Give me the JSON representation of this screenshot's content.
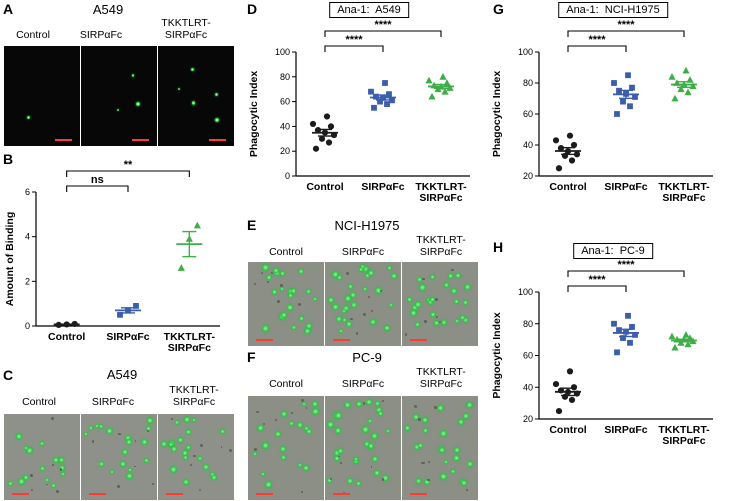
{
  "panels": {
    "A": {
      "label": "A",
      "title": "A549",
      "columns": [
        "Control",
        "SIRPαFc",
        "TKKTLRT-\nSIRPαFc"
      ]
    },
    "B": {
      "label": "B"
    },
    "C": {
      "label": "C",
      "title": "A549",
      "columns": [
        "Control",
        "SIRPαFc",
        "TKKTLRT-\nSIRPαFc"
      ]
    },
    "D": {
      "label": "D"
    },
    "E": {
      "label": "E",
      "title": "NCI-H1975",
      "columns": [
        "Control",
        "SIRPαFc",
        "TKKTLRT-\nSIRPαFc"
      ]
    },
    "F": {
      "label": "F",
      "title": "PC-9",
      "columns": [
        "Control",
        "SIRPαFc",
        "TKKTLRT-\nSIRPαFc"
      ]
    },
    "G": {
      "label": "G"
    },
    "H": {
      "label": "H"
    }
  },
  "chart_data": [
    {
      "id": "B",
      "type": "scatter",
      "title": "",
      "xlabel": "",
      "ylabel": "Amount of Binding",
      "ylim": [
        0,
        6
      ],
      "yticks": [
        0,
        2,
        4,
        6
      ],
      "grid": false,
      "categories": [
        "Control",
        "SIRPαFc",
        "TKKTLRT-\nSIRPαFc"
      ],
      "series": [
        {
          "name": "Control",
          "marker": "circle",
          "color": "#1c1c1c",
          "values": [
            0.05,
            0.07,
            0.09
          ]
        },
        {
          "name": "SIRPαFc",
          "marker": "square",
          "color": "#3a5dae",
          "values": [
            0.5,
            0.7,
            0.9
          ]
        },
        {
          "name": "TKKTLRT-SIRPαFc",
          "marker": "triangle",
          "color": "#3fae49",
          "values": [
            2.6,
            3.9,
            4.5
          ]
        }
      ],
      "significance": [
        {
          "from": 0,
          "to": 1,
          "label": "ns",
          "row": 0
        },
        {
          "from": 0,
          "to": 2,
          "label": "**",
          "row": 1
        }
      ]
    },
    {
      "id": "D",
      "type": "scatter",
      "title": "Ana-1:  A549",
      "xlabel": "",
      "ylabel": "Phagocytic Index",
      "ylim": [
        0,
        100
      ],
      "yticks": [
        0,
        20,
        40,
        60,
        80,
        100
      ],
      "grid": false,
      "categories": [
        "Control",
        "SIRPαFc",
        "TKKTLRT-\nSIRPαFc"
      ],
      "series": [
        {
          "name": "Control",
          "marker": "circle",
          "color": "#1c1c1c",
          "values": [
            22,
            27,
            30,
            33,
            35,
            37,
            40,
            42,
            48
          ]
        },
        {
          "name": "SIRPαFc",
          "marker": "square",
          "color": "#3a5dae",
          "values": [
            55,
            58,
            60,
            61,
            63,
            64,
            66,
            68,
            75
          ]
        },
        {
          "name": "TKKTLRT-SIRPαFc",
          "marker": "triangle",
          "color": "#3fae49",
          "values": [
            64,
            68,
            70,
            71,
            72,
            73,
            75,
            77,
            80
          ]
        }
      ],
      "significance": [
        {
          "from": 0,
          "to": 1,
          "label": "****",
          "row": 0
        },
        {
          "from": 0,
          "to": 2,
          "label": "****",
          "row": 1
        }
      ]
    },
    {
      "id": "G",
      "type": "scatter",
      "title": "Ana-1:  NCI-H1975",
      "xlabel": "",
      "ylabel": "Phagocytic Index",
      "ylim": [
        20,
        100
      ],
      "yticks": [
        20,
        40,
        60,
        80,
        100
      ],
      "grid": false,
      "categories": [
        "Control",
        "SIRPαFc",
        "TKKTLRT-\nSIRPαFc"
      ],
      "series": [
        {
          "name": "Control",
          "marker": "circle",
          "color": "#1c1c1c",
          "values": [
            25,
            30,
            33,
            34,
            36,
            38,
            40,
            43,
            46
          ]
        },
        {
          "name": "SIRPαFc",
          "marker": "square",
          "color": "#3a5dae",
          "values": [
            60,
            65,
            68,
            71,
            73,
            75,
            77,
            80,
            85
          ]
        },
        {
          "name": "TKKTLRT-SIRPαFc",
          "marker": "triangle",
          "color": "#3fae49",
          "values": [
            70,
            74,
            76,
            78,
            79,
            80,
            82,
            84,
            88
          ]
        }
      ],
      "significance": [
        {
          "from": 0,
          "to": 1,
          "label": "****",
          "row": 0
        },
        {
          "from": 0,
          "to": 2,
          "label": "****",
          "row": 1
        }
      ]
    },
    {
      "id": "H",
      "type": "scatter",
      "title": "Ana-1:  PC-9",
      "xlabel": "",
      "ylabel": "Phagocytic Index",
      "ylim": [
        20,
        100
      ],
      "yticks": [
        20,
        40,
        60,
        80,
        100
      ],
      "grid": false,
      "categories": [
        "Control",
        "SIRPαFc",
        "TKKTLRT-\nSIRPαFc"
      ],
      "series": [
        {
          "name": "Control",
          "marker": "circle",
          "color": "#1c1c1c",
          "values": [
            25,
            32,
            34,
            36,
            37,
            38,
            40,
            42,
            50
          ]
        },
        {
          "name": "SIRPαFc",
          "marker": "square",
          "color": "#3a5dae",
          "values": [
            62,
            68,
            71,
            73,
            75,
            76,
            78,
            80,
            85
          ]
        },
        {
          "name": "TKKTLRT-SIRPαFc",
          "marker": "triangle",
          "color": "#3fae49",
          "values": [
            65,
            67,
            68,
            69,
            70,
            70,
            71,
            72,
            73
          ]
        }
      ],
      "significance": [
        {
          "from": 0,
          "to": 1,
          "label": "****",
          "row": 0
        },
        {
          "from": 0,
          "to": 2,
          "label": "****",
          "row": 1
        }
      ]
    }
  ],
  "micrographs": {
    "A": {
      "bg": "#070707",
      "cell_core": "#c9ffd0",
      "cell_color": "#34e04b",
      "cell_min": 2,
      "cell_max": 4,
      "cell_counts": [
        1,
        3,
        5
      ],
      "specks": 0,
      "scalebar_color": "#ff3b30",
      "scalebar_side": "right"
    },
    "C": {
      "bg": "#8e9189",
      "cell_core": "#9df2a8",
      "cell_color": "#2fc244",
      "cell_min": 4,
      "cell_max": 7,
      "cell_counts": [
        15,
        17,
        19
      ],
      "specks": 7,
      "scalebar_color": "#ff3b30",
      "scalebar_side": "left"
    },
    "E": {
      "bg": "#8b8f86",
      "cell_core": "#9df2a8",
      "cell_color": "#2fc244",
      "cell_min": 4,
      "cell_max": 7,
      "cell_counts": [
        21,
        27,
        24
      ],
      "specks": 7,
      "scalebar_color": "#ff3b30",
      "scalebar_side": "left"
    },
    "F": {
      "bg": "#8b8f86",
      "cell_core": "#9df2a8",
      "cell_color": "#2fc244",
      "cell_min": 4,
      "cell_max": 7,
      "cell_counts": [
        18,
        28,
        23
      ],
      "specks": 8,
      "scalebar_color": "#ff3b30",
      "scalebar_side": "left"
    }
  }
}
